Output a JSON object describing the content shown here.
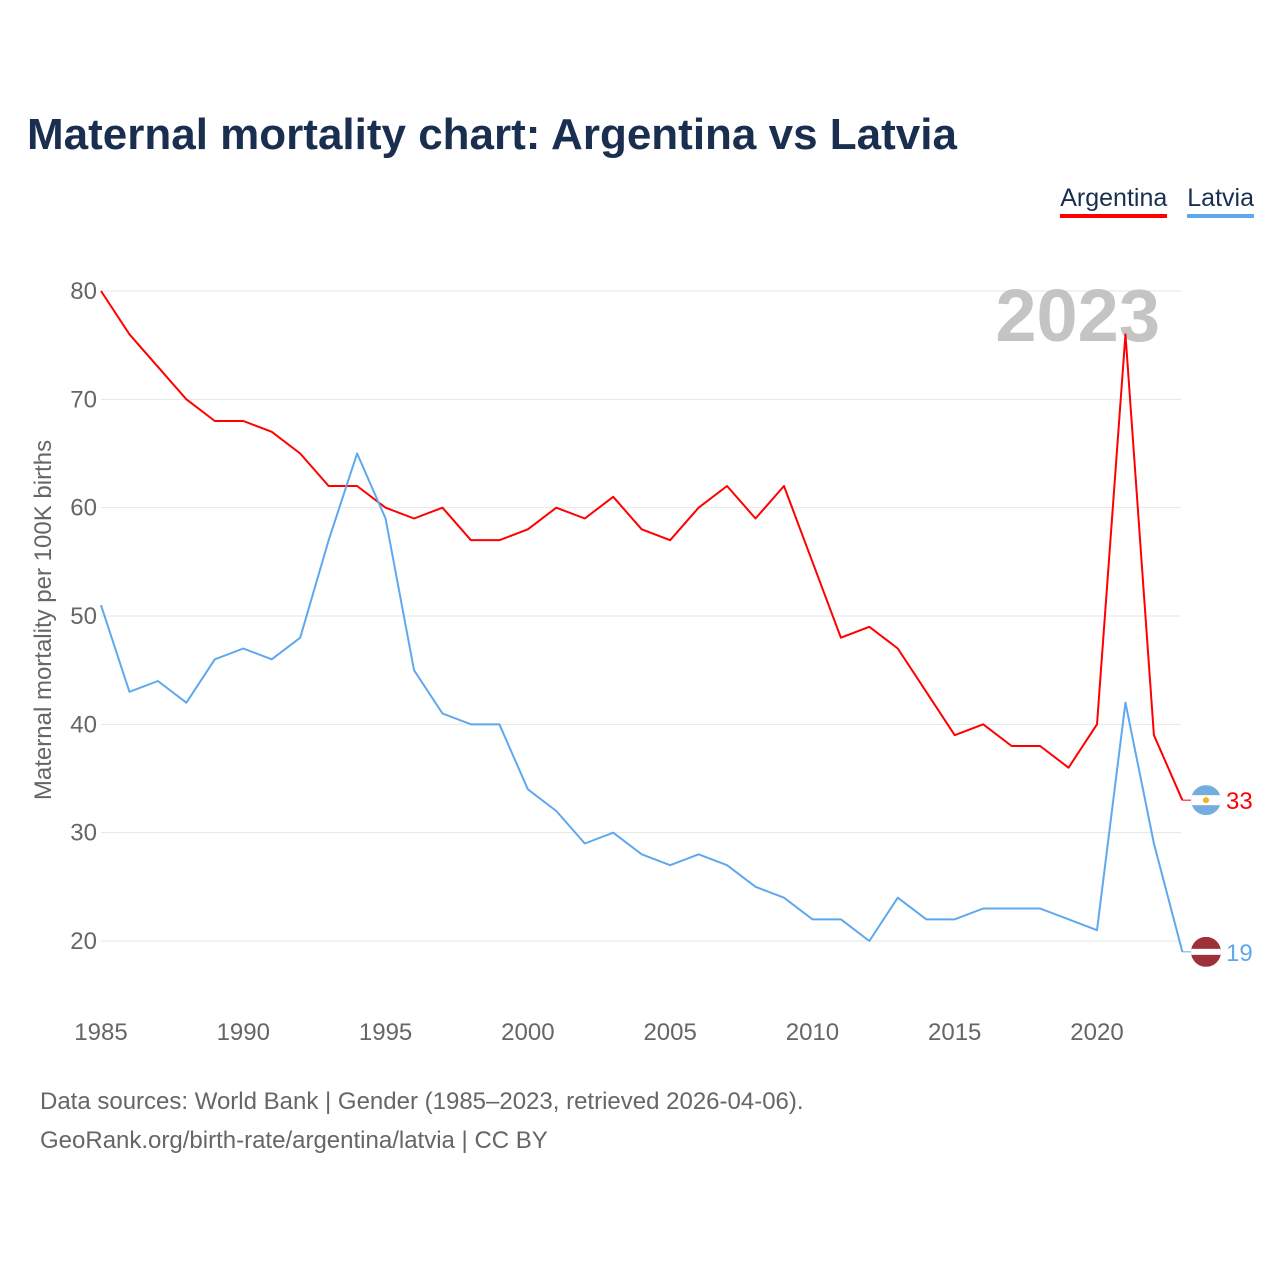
{
  "title": "Maternal mortality chart: Argentina vs Latvia",
  "footer": {
    "line1": "Data sources: World Bank | Gender (1985–2023, retrieved 2026-04-06).",
    "line2": "GeoRank.org/birth-rate/argentina/latvia | CC BY"
  },
  "chart_data": {
    "type": "line",
    "title": "Maternal mortality chart: Argentina vs Latvia",
    "ylabel": "Maternal mortality per 100K births",
    "xlabel": "",
    "year_label": "2023",
    "xlim": [
      1985,
      2023
    ],
    "ylim": [
      20,
      80
    ],
    "xticks": [
      1985,
      1990,
      1995,
      2000,
      2005,
      2010,
      2015,
      2020
    ],
    "yticks": [
      20,
      30,
      40,
      50,
      60,
      70,
      80
    ],
    "grid": true,
    "legend_position": "top-right",
    "x": [
      1985,
      1986,
      1987,
      1988,
      1989,
      1990,
      1991,
      1992,
      1993,
      1994,
      1995,
      1996,
      1997,
      1998,
      1999,
      2000,
      2001,
      2002,
      2003,
      2004,
      2005,
      2006,
      2007,
      2008,
      2009,
      2010,
      2011,
      2012,
      2013,
      2014,
      2015,
      2016,
      2017,
      2018,
      2019,
      2020,
      2021,
      2022,
      2023
    ],
    "series": [
      {
        "name": "Argentina",
        "color": "#ff0000",
        "end_label": "33",
        "values": [
          80,
          76,
          73,
          70,
          68,
          68,
          67,
          65,
          62,
          62,
          60,
          59,
          60,
          57,
          57,
          58,
          60,
          59,
          61,
          58,
          57,
          60,
          62,
          59,
          62,
          55,
          48,
          49,
          47,
          43,
          39,
          40,
          38,
          38,
          36,
          40,
          76,
          39,
          33
        ]
      },
      {
        "name": "Latvia",
        "color": "#5fa8ee",
        "end_label": "19",
        "values": [
          51,
          43,
          44,
          42,
          46,
          47,
          46,
          48,
          57,
          65,
          59,
          45,
          41,
          40,
          40,
          34,
          32,
          29,
          30,
          28,
          27,
          28,
          27,
          25,
          24,
          22,
          22,
          20,
          24,
          22,
          22,
          23,
          23,
          23,
          22,
          21,
          42,
          29,
          19
        ]
      }
    ]
  }
}
